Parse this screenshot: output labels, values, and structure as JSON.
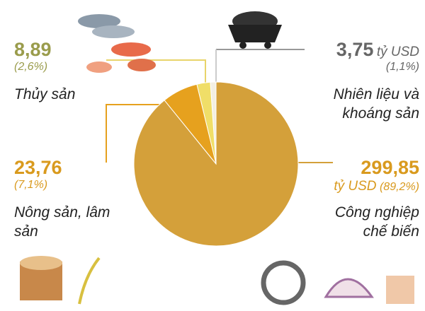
{
  "chart_data": {
    "type": "pie",
    "categories": [
      "Thủy sản",
      "Nhiên liệu và khoáng sản",
      "Nông sản, lâm sản",
      "Công nghiệp chế biến"
    ],
    "values": [
      8.89,
      3.75,
      23.76,
      299.85
    ],
    "value_labels": [
      "8,89",
      "3,75",
      "23,76",
      "299,85"
    ],
    "percentages": [
      2.6,
      1.1,
      7.1,
      89.2
    ],
    "percentage_labels": [
      "(2,6%)",
      "(1,1%)",
      "(7,1%)",
      "(89,2%)"
    ],
    "unit": "tỷ USD",
    "colors": [
      "#f0de68",
      "#f3efe2",
      "#e6a11e",
      "#d4a03a"
    ],
    "label_colors": [
      "#9a9c4c",
      "#666666",
      "#d99a1e",
      "#d99a1e"
    ]
  }
}
